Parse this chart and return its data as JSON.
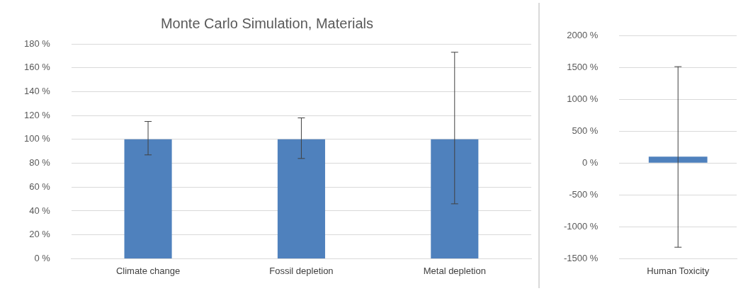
{
  "chart_data": [
    {
      "type": "bar",
      "title": "Monte Carlo Simulation, Materials",
      "categories": [
        "Climate change",
        "Fossil depletion",
        "Metal depletion"
      ],
      "series": [
        {
          "color": "#4f81bd",
          "values": [
            100,
            100,
            100
          ],
          "errors": [
            [
              87,
              115
            ],
            [
              84,
              118
            ],
            [
              46,
              173
            ]
          ]
        }
      ],
      "ylim": [
        0,
        180
      ],
      "yticks": [
        {
          "value": 0,
          "label": "0 %"
        },
        {
          "value": 20,
          "label": "20 %"
        },
        {
          "value": 40,
          "label": "40 %"
        },
        {
          "value": 60,
          "label": "60 %"
        },
        {
          "value": 80,
          "label": "80 %"
        },
        {
          "value": 100,
          "label": "100 %"
        },
        {
          "value": 120,
          "label": "120 %"
        },
        {
          "value": 140,
          "label": "140 %"
        },
        {
          "value": 160,
          "label": "160 %"
        },
        {
          "value": 180,
          "label": "180 %"
        }
      ],
      "grid": "y",
      "legend": false
    },
    {
      "type": "bar",
      "categories": [
        "Human Toxicity"
      ],
      "series": [
        {
          "color": "#4f81bd",
          "values": [
            100
          ],
          "errors": [
            [
              -1320,
              1510
            ]
          ]
        }
      ],
      "ylim": [
        -1500,
        2000
      ],
      "yticks": [
        {
          "value": -1500,
          "label": "-1500 %"
        },
        {
          "value": -1000,
          "label": "-1000 %"
        },
        {
          "value": -500,
          "label": "-500 %"
        },
        {
          "value": 0,
          "label": "0 %"
        },
        {
          "value": 500,
          "label": "500 %"
        },
        {
          "value": 1000,
          "label": "1000 %"
        },
        {
          "value": 1500,
          "label": "1500 %"
        },
        {
          "value": 2000,
          "label": "2000 %"
        }
      ],
      "grid": "y",
      "legend": false
    }
  ]
}
